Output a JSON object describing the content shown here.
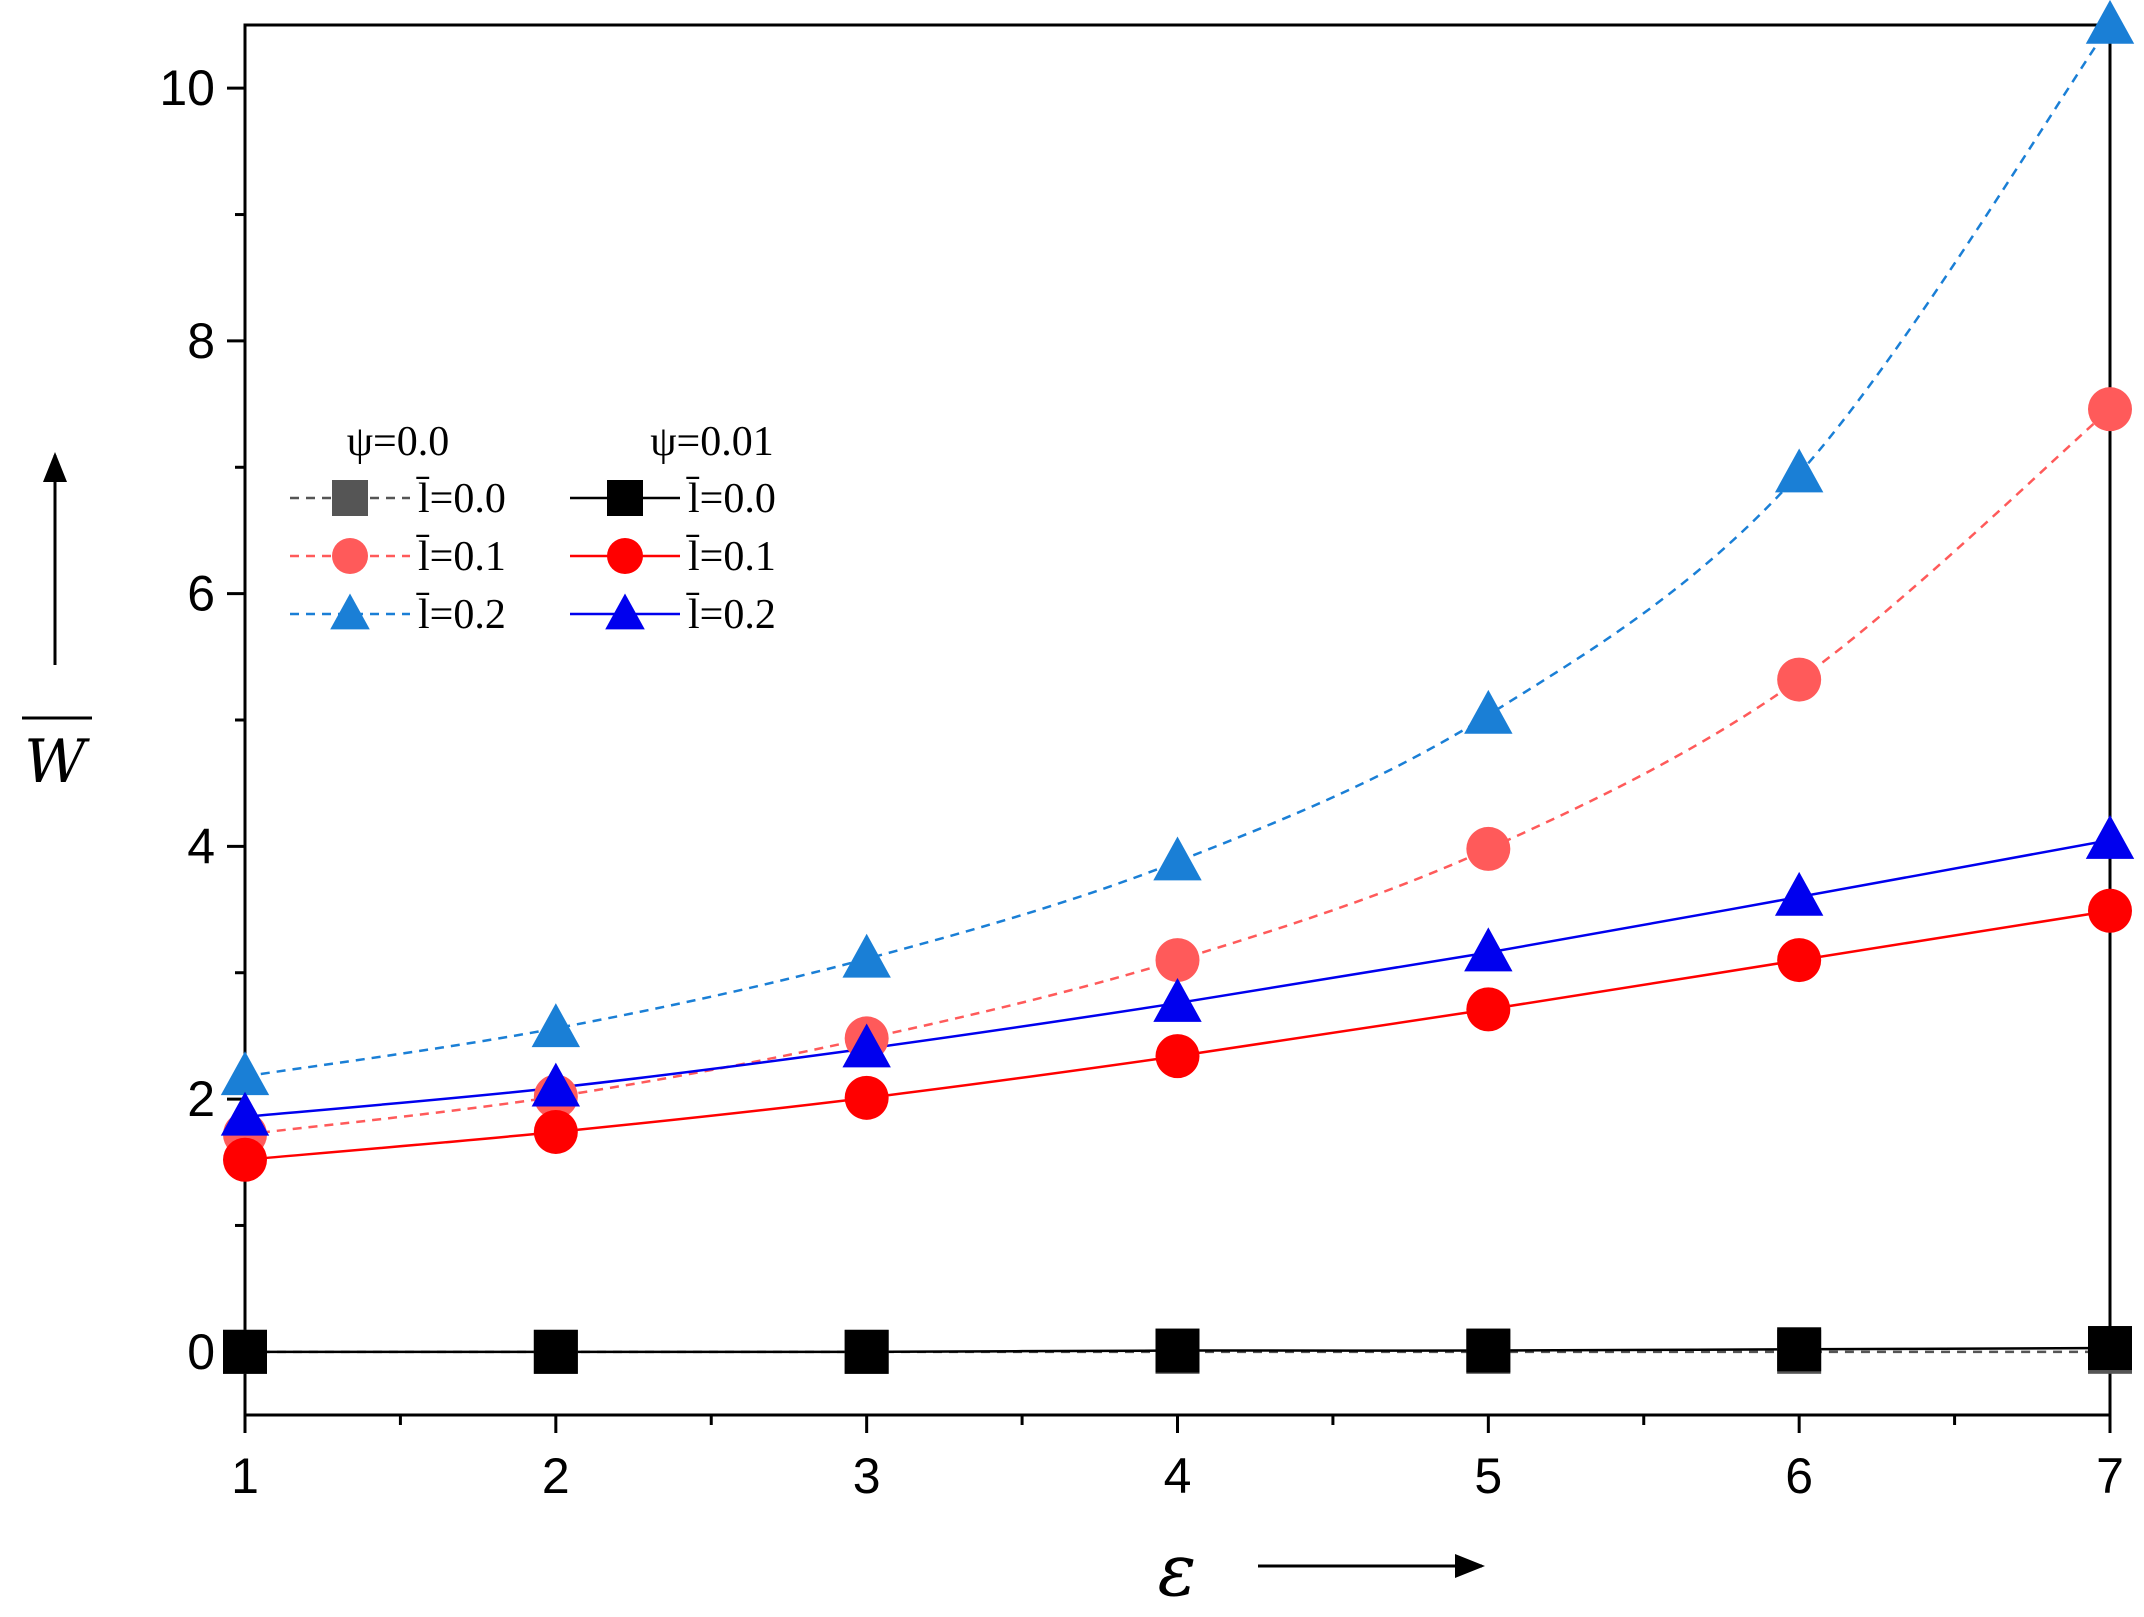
{
  "chart_data": {
    "type": "line",
    "title": "",
    "xlabel": "ε",
    "ylabel": "W",
    "xlim": [
      1,
      7
    ],
    "ylim": [
      -0.5,
      10.5
    ],
    "x_ticks": [
      1,
      2,
      3,
      4,
      5,
      6,
      7
    ],
    "y_ticks": [
      0,
      2,
      4,
      6,
      8,
      10
    ],
    "x_tick_labels": [
      "1",
      "2",
      "3",
      "4",
      "5",
      "6",
      "7"
    ],
    "y_tick_labels": [
      "0",
      "2",
      "4",
      "6",
      "8",
      "10"
    ],
    "legend": {
      "placement": "upper-left",
      "group_headers": [
        "ψ=0.0",
        "ψ=0.01"
      ]
    },
    "series": [
      {
        "name": "l̄=0.0",
        "group": "ψ=0.0",
        "color": "#555555",
        "line": "dashed",
        "marker": "square",
        "x": [
          1,
          2,
          3,
          4,
          5,
          6,
          7
        ],
        "values": [
          0,
          0,
          0,
          0,
          0,
          0,
          0
        ]
      },
      {
        "name": "l̄=0.1",
        "group": "ψ=0.0",
        "color": "#ff5a5a",
        "line": "dashed",
        "marker": "circle",
        "x": [
          1,
          2,
          3,
          4,
          5,
          6,
          7
        ],
        "values": [
          1.72,
          2.02,
          2.48,
          3.1,
          3.98,
          5.32,
          7.46
        ]
      },
      {
        "name": "l̄=0.2",
        "group": "ψ=0.0",
        "color": "#1a7fd6",
        "line": "dashed",
        "marker": "triangle",
        "x": [
          1,
          2,
          3,
          4,
          5,
          6,
          7
        ],
        "values": [
          2.18,
          2.56,
          3.11,
          3.88,
          5.04,
          6.95,
          10.5
        ]
      },
      {
        "name": "l̄=0.0",
        "group": "ψ=0.01",
        "color": "#000000",
        "line": "solid",
        "marker": "square",
        "x": [
          1,
          2,
          3,
          4,
          5,
          6,
          7
        ],
        "values": [
          0.0,
          0.0,
          0.0,
          0.01,
          0.01,
          0.02,
          0.03
        ]
      },
      {
        "name": "l̄=0.1",
        "group": "ψ=0.01",
        "color": "#ff0000",
        "line": "solid",
        "marker": "circle",
        "x": [
          1,
          2,
          3,
          4,
          5,
          6,
          7
        ],
        "values": [
          1.52,
          1.74,
          2.01,
          2.34,
          2.71,
          3.1,
          3.49
        ]
      },
      {
        "name": "l̄=0.2",
        "group": "ψ=0.01",
        "color": "#0000ee",
        "line": "solid",
        "marker": "triangle",
        "x": [
          1,
          2,
          3,
          4,
          5,
          6,
          7
        ],
        "values": [
          1.86,
          2.09,
          2.4,
          2.76,
          3.16,
          3.6,
          4.05
        ]
      }
    ]
  }
}
